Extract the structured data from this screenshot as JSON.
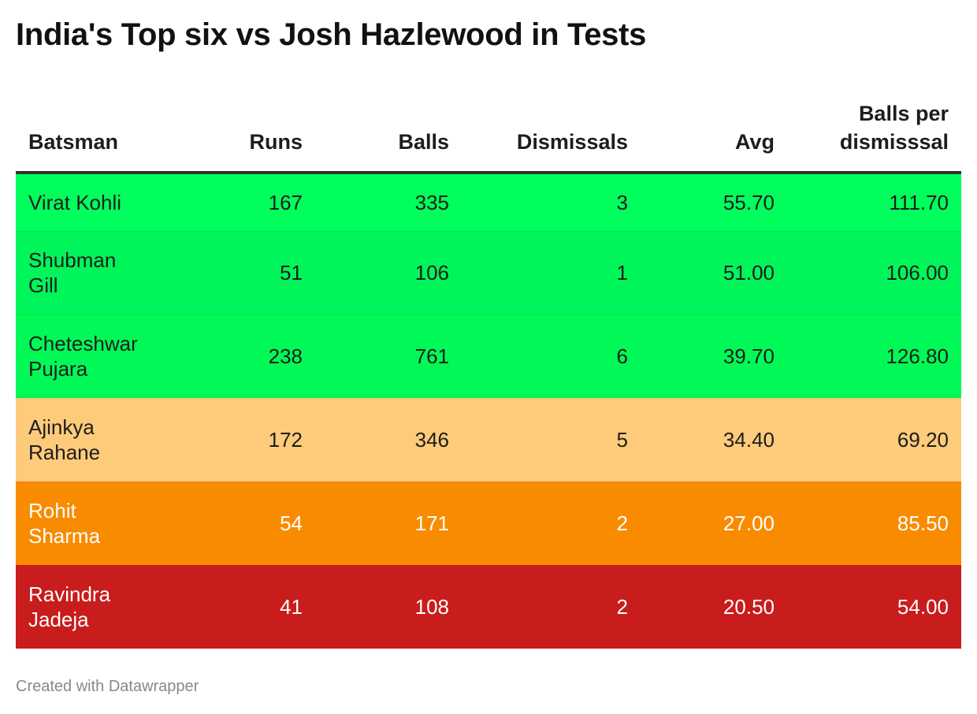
{
  "title": "India's Top six vs Josh Hazlewood in Tests",
  "footer": "Created with Datawrapper",
  "chart_data": {
    "type": "table",
    "title": "India's Top six vs Josh Hazlewood in Tests",
    "columns": [
      {
        "key": "batsman",
        "label": "Batsman",
        "align": "left"
      },
      {
        "key": "runs",
        "label": "Runs",
        "align": "right"
      },
      {
        "key": "balls",
        "label": "Balls",
        "align": "right"
      },
      {
        "key": "dismissals",
        "label": "Dismissals",
        "align": "right"
      },
      {
        "key": "avg",
        "label": "Avg",
        "align": "right"
      },
      {
        "key": "bpd",
        "label": "Balls per dismisssal",
        "align": "right"
      }
    ],
    "rows": [
      {
        "batsman": "Virat Kohli",
        "runs": "167",
        "balls": "335",
        "dismissals": "3",
        "avg": "55.70",
        "bpd": "111.70",
        "bg": "#00ff5c",
        "fg": "#1d1d1d"
      },
      {
        "batsman": "Shubman Gill",
        "runs": "51",
        "balls": "106",
        "dismissals": "1",
        "avg": "51.00",
        "bpd": "106.00",
        "bg": "#00f55a",
        "fg": "#1d1d1d"
      },
      {
        "batsman": "Cheteshwar Pujara",
        "runs": "238",
        "balls": "761",
        "dismissals": "6",
        "avg": "39.70",
        "bpd": "126.80",
        "bg": "#00f956",
        "fg": "#1d1d1d"
      },
      {
        "batsman": "Ajinkya Rahane",
        "runs": "172",
        "balls": "346",
        "dismissals": "5",
        "avg": "34.40",
        "bpd": "69.20",
        "bg": "#fecb7a",
        "fg": "#1d1d1d"
      },
      {
        "batsman": "Rohit Sharma",
        "runs": "54",
        "balls": "171",
        "dismissals": "2",
        "avg": "27.00",
        "bpd": "85.50",
        "bg": "#f98b00",
        "fg": "#ffffff"
      },
      {
        "batsman": "Ravindra Jadeja",
        "runs": "41",
        "balls": "108",
        "dismissals": "2",
        "avg": "20.50",
        "bpd": "54.00",
        "bg": "#c91c1c",
        "fg": "#ffffff"
      }
    ]
  }
}
